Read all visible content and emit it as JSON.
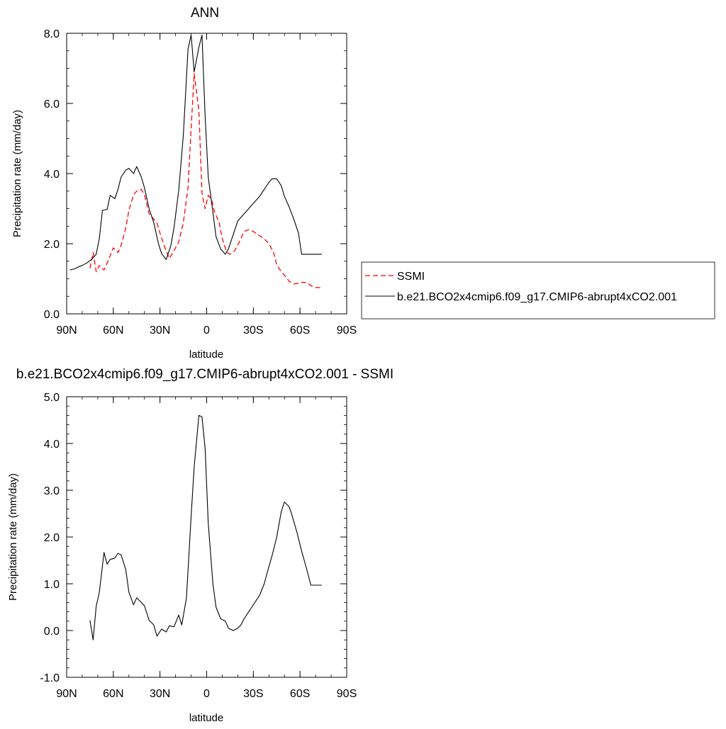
{
  "chart_data": [
    {
      "type": "line",
      "title": "ANN",
      "xlabel": "latitude",
      "ylabel": "Precipitation rate (mm/day)",
      "xlim": [
        90,
        -90
      ],
      "ylim": [
        0,
        8
      ],
      "xticks": [
        {
          "value": 90,
          "label": "90N"
        },
        {
          "value": 60,
          "label": "60N"
        },
        {
          "value": 30,
          "label": "30N"
        },
        {
          "value": 0,
          "label": "0"
        },
        {
          "value": -30,
          "label": "30S"
        },
        {
          "value": -60,
          "label": "60S"
        },
        {
          "value": -90,
          "label": "90S"
        }
      ],
      "yticks": [
        {
          "value": 0,
          "label": "0.0"
        },
        {
          "value": 2,
          "label": "2.0"
        },
        {
          "value": 4,
          "label": "4.0"
        },
        {
          "value": 6,
          "label": "6.0"
        },
        {
          "value": 8,
          "label": "8.0"
        }
      ],
      "grid": false,
      "legend_position": "right",
      "series": [
        {
          "name": "SSMI",
          "color": "#ff0000",
          "dash": true,
          "x": [
            75,
            73,
            71,
            69,
            66,
            63,
            60,
            57,
            55,
            52,
            50,
            47,
            45,
            42,
            40,
            37,
            35,
            32,
            30,
            27,
            24,
            21,
            18,
            15,
            12,
            10,
            8,
            5,
            3,
            1,
            -1,
            -3,
            -5,
            -8,
            -10,
            -13,
            -15,
            -18,
            -21,
            -24,
            -27,
            -30,
            -33,
            -35,
            -38,
            -40,
            -43,
            -45,
            -48,
            -51,
            -53,
            -56,
            -59,
            -62,
            -65,
            -67,
            -70,
            -72,
            -74
          ],
          "y": [
            1.3,
            1.75,
            1.2,
            1.38,
            1.25,
            1.55,
            1.88,
            1.75,
            1.95,
            2.45,
            2.95,
            3.4,
            3.5,
            3.55,
            3.4,
            2.85,
            2.75,
            2.6,
            2.3,
            1.9,
            1.58,
            1.8,
            2.05,
            2.6,
            3.6,
            5.3,
            6.85,
            5.8,
            3.45,
            3.0,
            3.38,
            3.28,
            2.92,
            2.6,
            2.15,
            1.75,
            1.7,
            1.8,
            2.05,
            2.35,
            2.4,
            2.35,
            2.25,
            2.2,
            2.1,
            2.0,
            1.75,
            1.4,
            1.2,
            1.05,
            0.93,
            0.85,
            0.87,
            0.9,
            0.88,
            0.8,
            0.75,
            0.75,
            0.75
          ]
        },
        {
          "name": "b.e21.BCO2x4cmip6.f09_g17.CMIP6-abrupt4xCO2.001",
          "color": "#000000",
          "dash": false,
          "x": [
            88,
            85,
            82,
            80,
            77,
            74,
            71,
            69,
            67,
            64,
            62,
            59,
            57,
            55,
            52,
            50,
            47,
            45,
            42,
            40,
            37,
            34,
            31,
            29,
            26,
            23,
            21,
            18,
            15,
            12,
            10,
            8,
            5,
            3,
            1,
            -1,
            -4,
            -6,
            -9,
            -12,
            -14,
            -17,
            -20,
            -23,
            -26,
            -28,
            -31,
            -34,
            -37,
            -40,
            -42,
            -45,
            -48,
            -50,
            -53,
            -56,
            -59,
            -61,
            -64,
            -67,
            -70,
            -73,
            -74
          ],
          "y": [
            1.25,
            1.28,
            1.35,
            1.38,
            1.45,
            1.55,
            1.7,
            2.15,
            2.95,
            2.98,
            3.38,
            3.28,
            3.55,
            3.9,
            4.1,
            4.15,
            4.0,
            4.2,
            3.9,
            3.6,
            3.0,
            2.6,
            2.0,
            1.72,
            1.55,
            1.95,
            2.45,
            3.5,
            5.1,
            7.55,
            7.95,
            6.9,
            7.6,
            7.95,
            5.65,
            3.9,
            2.9,
            2.2,
            1.85,
            1.7,
            1.85,
            2.25,
            2.65,
            2.8,
            2.95,
            3.05,
            3.2,
            3.35,
            3.55,
            3.75,
            3.85,
            3.85,
            3.65,
            3.35,
            3.05,
            2.7,
            2.3,
            1.7,
            1.7,
            1.7,
            1.7,
            1.7,
            1.7
          ]
        }
      ]
    },
    {
      "type": "line",
      "title": "b.e21.BCO2x4cmip6.f09_g17.CMIP6-abrupt4xCO2.001 - SSMI",
      "xlabel": "latitude",
      "ylabel": "Precipitation rate (mm/day)",
      "xlim": [
        90,
        -90
      ],
      "ylim": [
        -1,
        5
      ],
      "xticks": [
        {
          "value": 90,
          "label": "90N"
        },
        {
          "value": 60,
          "label": "60N"
        },
        {
          "value": 30,
          "label": "30N"
        },
        {
          "value": 0,
          "label": "0"
        },
        {
          "value": -30,
          "label": "30S"
        },
        {
          "value": -60,
          "label": "60S"
        },
        {
          "value": -90,
          "label": "90S"
        }
      ],
      "yticks": [
        {
          "value": -1,
          "label": "-1.0"
        },
        {
          "value": 0,
          "label": "0.0"
        },
        {
          "value": 1,
          "label": "1.0"
        },
        {
          "value": 2,
          "label": "2.0"
        },
        {
          "value": 3,
          "label": "3.0"
        },
        {
          "value": 4,
          "label": "4.0"
        },
        {
          "value": 5,
          "label": "5.0"
        }
      ],
      "grid": false,
      "series": [
        {
          "color": "#000000",
          "dash": false,
          "x": [
            75,
            73,
            71,
            69,
            66,
            64,
            62,
            59,
            57,
            55,
            52,
            50,
            47,
            45,
            42,
            40,
            37,
            34,
            32,
            29,
            26,
            24,
            21,
            18,
            16,
            13,
            10,
            8,
            5,
            3,
            1,
            -1,
            -4,
            -6,
            -9,
            -12,
            -14,
            -17,
            -20,
            -22,
            -24,
            -27,
            -29,
            -32,
            -34,
            -37,
            -39,
            -42,
            -45,
            -48,
            -50,
            -53,
            -55,
            -58,
            -61,
            -64,
            -67,
            -70,
            -74
          ],
          "y": [
            0.22,
            -0.2,
            0.52,
            0.82,
            1.67,
            1.42,
            1.52,
            1.55,
            1.65,
            1.62,
            1.3,
            0.82,
            0.55,
            0.7,
            0.6,
            0.53,
            0.22,
            0.12,
            -0.12,
            0.03,
            -0.03,
            0.1,
            0.08,
            0.33,
            0.12,
            0.7,
            2.45,
            3.5,
            4.6,
            4.57,
            3.9,
            2.3,
            1.0,
            0.5,
            0.25,
            0.2,
            0.05,
            0.0,
            0.05,
            0.12,
            0.25,
            0.4,
            0.5,
            0.65,
            0.75,
            1.0,
            1.25,
            1.6,
            2.0,
            2.55,
            2.75,
            2.65,
            2.45,
            2.1,
            1.7,
            1.35,
            0.97,
            0.97,
            0.97
          ]
        }
      ]
    }
  ]
}
